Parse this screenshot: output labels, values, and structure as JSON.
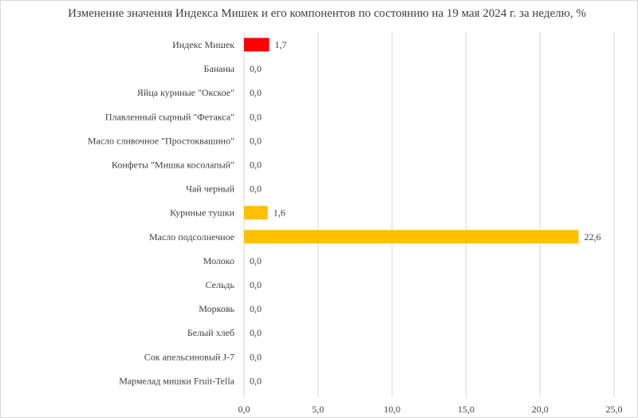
{
  "chart_data": {
    "type": "bar",
    "orientation": "horizontal",
    "title": "Изменение значения Индекса Мишек и его компонентов по состоянию на 19 мая 2024 г. за неделю, %",
    "categories": [
      "Индекс Мишек",
      "Бананы",
      "Яйца куриные \"Окское\"",
      "Плавленный сырный \"Фетакса\"",
      "Масло сливочное \"Простоквашино\"",
      "Конфеты \"Мишка косолапый\"",
      "Чай черный",
      "Куриные тушки",
      "Масло подсолнечное",
      "Молоко",
      "Сельдь",
      "Морковь",
      "Белый хлеб",
      "Сок апельсиновый J-7",
      "Мармелад мишки Fruit-Tella"
    ],
    "values": [
      1.7,
      0.0,
      0.0,
      0.0,
      0.0,
      0.0,
      0.0,
      1.6,
      22.6,
      0.0,
      0.0,
      0.0,
      0.0,
      0.0,
      0.0
    ],
    "value_labels": [
      "1,7",
      "0,0",
      "0,0",
      "0,0",
      "0,0",
      "0,0",
      "0,0",
      "1,6",
      "22,6",
      "0,0",
      "0,0",
      "0,0",
      "0,0",
      "0,0",
      "0,0"
    ],
    "bar_colors": [
      "#ff0000",
      "#ffc000",
      "#ffc000",
      "#ffc000",
      "#ffc000",
      "#ffc000",
      "#ffc000",
      "#ffc000",
      "#ffc000",
      "#ffc000",
      "#ffc000",
      "#ffc000",
      "#ffc000",
      "#ffc000",
      "#ffc000"
    ],
    "xlim": [
      0,
      25
    ],
    "x_ticks": [
      0,
      5,
      10,
      15,
      20,
      25
    ],
    "x_tick_labels": [
      "0,0",
      "5,0",
      "10,0",
      "15,0",
      "20,0",
      "25,0"
    ],
    "grid": "vertical",
    "legend": "none"
  }
}
